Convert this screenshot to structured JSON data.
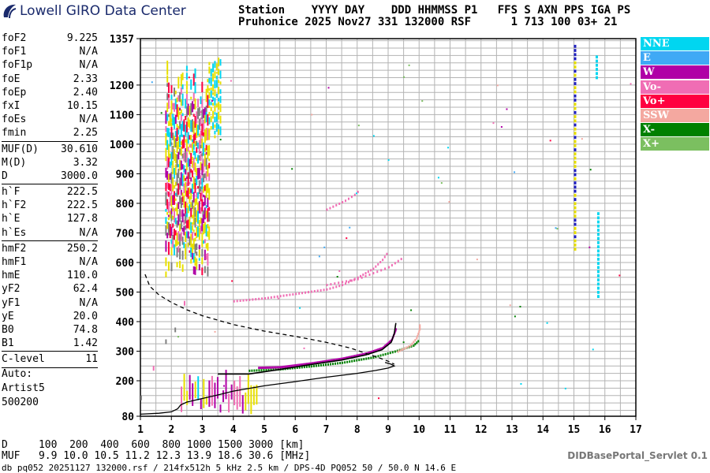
{
  "header": {
    "logo_text": "Lowell GIRO Data Center",
    "line1": "Station    YYYY DAY    DDD HHMMSS P1   FFS S AXN PPS IGA PS",
    "line2": "Pruhonice 2025 Nov27 331 132000 RSF      1 713 100 03+ 21"
  },
  "params": [
    [
      {
        "k": "foF2",
        "v": "9.225"
      },
      {
        "k": "foF1",
        "v": "N/A"
      },
      {
        "k": "foF1p",
        "v": "N/A"
      },
      {
        "k": "foE",
        "v": "2.33"
      },
      {
        "k": "foEp",
        "v": "2.40"
      },
      {
        "k": "fxI",
        "v": "10.15"
      },
      {
        "k": "foEs",
        "v": "N/A"
      },
      {
        "k": "fmin",
        "v": "2.25"
      }
    ],
    [
      {
        "k": "MUF(D)",
        "v": "30.610"
      },
      {
        "k": "M(D)",
        "v": "3.32"
      },
      {
        "k": "D",
        "v": "3000.0"
      }
    ],
    [
      {
        "k": "h`F",
        "v": "222.5"
      },
      {
        "k": "h`F2",
        "v": "222.5"
      },
      {
        "k": "h`E",
        "v": "127.8"
      },
      {
        "k": "h`Es",
        "v": "N/A"
      }
    ],
    [
      {
        "k": "hmF2",
        "v": "250.2"
      },
      {
        "k": "hmF1",
        "v": "N/A"
      },
      {
        "k": "hmE",
        "v": "110.0"
      },
      {
        "k": "yF2",
        "v": "62.4"
      },
      {
        "k": "yF1",
        "v": "N/A"
      },
      {
        "k": "yE",
        "v": "20.0"
      },
      {
        "k": "B0",
        "v": "74.8"
      },
      {
        "k": "B1",
        "v": "1.42"
      }
    ],
    [
      {
        "k": "C-level",
        "v": "11"
      }
    ]
  ],
  "auto": {
    "label": "Auto:",
    "artist": "Artist5",
    "version": "500200"
  },
  "legend": [
    {
      "label": "NNE",
      "color": "#00d6f0"
    },
    {
      "label": "E",
      "color": "#3fa9f5"
    },
    {
      "label": "W",
      "color": "#b000a6"
    },
    {
      "label": "Vo-",
      "color": "#f06db4"
    },
    {
      "label": "Vo+",
      "color": "#ff0040"
    },
    {
      "label": "SSW",
      "color": "#f4a8a0"
    },
    {
      "label": "X-",
      "color": "#008000"
    },
    {
      "label": "X+",
      "color": "#7bbf60"
    }
  ],
  "dmuf": {
    "d_line": "D     100  200  400  600  800 1000 1500 3000 [km]",
    "muf_line": "MUF   9.9 10.0 10.5 11.2 12.3 13.9 18.6 30.6 [MHz]"
  },
  "footer": "db pq052 20251127 132000.rsf / 214fx512h 5 kHz 2.5 km / DPS-4D PQ052 50 / 50.0 N 14.6 E",
  "servlet": "DIDBasePortal_Servlet 0.1",
  "chart_data": {
    "type": "scatter",
    "x_ticks": [
      1,
      2,
      3,
      4,
      5,
      6,
      7,
      8,
      9,
      10,
      11,
      12,
      13,
      14,
      15,
      16,
      17
    ],
    "xlim": [
      1,
      17
    ],
    "y_ticks": [
      80,
      200,
      300,
      400,
      500,
      600,
      700,
      800,
      900,
      1000,
      1100,
      1200,
      1357
    ],
    "ylim": [
      80,
      1357
    ],
    "grid": true,
    "legend_position": "right",
    "profile_solid": [
      [
        1.0,
        87
      ],
      [
        1.6,
        90
      ],
      [
        2.0,
        95
      ],
      [
        2.2,
        105
      ],
      [
        2.3,
        118
      ],
      [
        2.5,
        128
      ],
      [
        3.0,
        140
      ],
      [
        3.5,
        152
      ],
      [
        4.0,
        165
      ],
      [
        5.0,
        183
      ],
      [
        6.0,
        197
      ],
      [
        7.0,
        212
      ],
      [
        8.0,
        225
      ],
      [
        8.6,
        235
      ],
      [
        9.0,
        243
      ],
      [
        9.2,
        250
      ],
      [
        9.1,
        256
      ],
      [
        8.9,
        262
      ]
    ],
    "profile_dashed": [
      [
        1.15,
        560
      ],
      [
        1.3,
        520
      ],
      [
        1.6,
        490
      ],
      [
        2.0,
        465
      ],
      [
        2.5,
        440
      ],
      [
        3.0,
        420
      ],
      [
        3.5,
        405
      ],
      [
        4.0,
        390
      ],
      [
        5.0,
        368
      ],
      [
        6.0,
        350
      ],
      [
        7.0,
        330
      ],
      [
        7.8,
        310
      ],
      [
        8.3,
        292
      ],
      [
        8.7,
        278
      ],
      [
        9.0,
        266
      ],
      [
        9.2,
        256
      ]
    ],
    "trace_black": [
      [
        3.5,
        223
      ],
      [
        4.5,
        223
      ],
      [
        5.5,
        238
      ],
      [
        6.5,
        255
      ],
      [
        7.5,
        270
      ],
      [
        8.3,
        288
      ],
      [
        8.8,
        305
      ],
      [
        9.1,
        330
      ],
      [
        9.2,
        360
      ],
      [
        9.25,
        395
      ]
    ],
    "trace_maroon": [
      [
        4.8,
        245
      ],
      [
        5.5,
        247
      ],
      [
        6.5,
        260
      ],
      [
        7.5,
        276
      ],
      [
        8.3,
        294
      ],
      [
        8.8,
        312
      ],
      [
        9.1,
        340
      ],
      [
        9.25,
        380
      ]
    ],
    "trace_o2": [
      [
        4.0,
        470
      ],
      [
        5.0,
        480
      ],
      [
        6.0,
        495
      ],
      [
        7.0,
        510
      ],
      [
        7.5,
        525
      ],
      [
        8.0,
        550
      ],
      [
        8.5,
        580
      ],
      [
        8.8,
        610
      ],
      [
        9.0,
        640
      ]
    ],
    "trace_o3": [
      [
        7.0,
        780
      ],
      [
        7.3,
        795
      ],
      [
        7.6,
        810
      ],
      [
        7.9,
        830
      ],
      [
        8.1,
        850
      ]
    ],
    "trace_x": [
      [
        4.5,
        235
      ],
      [
        5.5,
        240
      ],
      [
        6.5,
        250
      ],
      [
        7.5,
        262
      ],
      [
        8.5,
        280
      ],
      [
        9.2,
        300
      ],
      [
        9.8,
        320
      ],
      [
        10.0,
        340
      ]
    ],
    "trace_x2": [
      [
        7.0,
        525
      ],
      [
        8.0,
        545
      ],
      [
        9.0,
        585
      ],
      [
        9.5,
        620
      ]
    ],
    "trace_ssw": [
      [
        9.3,
        300
      ],
      [
        9.7,
        320
      ],
      [
        9.9,
        345
      ],
      [
        10.0,
        375
      ],
      [
        10.0,
        395
      ]
    ],
    "f_layer_spread": {
      "x_from": 1.8,
      "x_to": 3.2,
      "y_from": 550,
      "y_to": 1280
    },
    "e_layer": [
      [
        1.0,
        150
      ],
      [
        1.4,
        250
      ],
      [
        1.8,
        340
      ],
      [
        2.1,
        380
      ],
      [
        2.4,
        470
      ]
    ],
    "interference": [
      {
        "x": 15.0,
        "y_from": 640,
        "y_to": 1340
      },
      {
        "x": 15.75,
        "y_from": 480,
        "y_to": 770
      },
      {
        "x": 15.7,
        "y_from": 1220,
        "y_to": 1300
      }
    ]
  }
}
